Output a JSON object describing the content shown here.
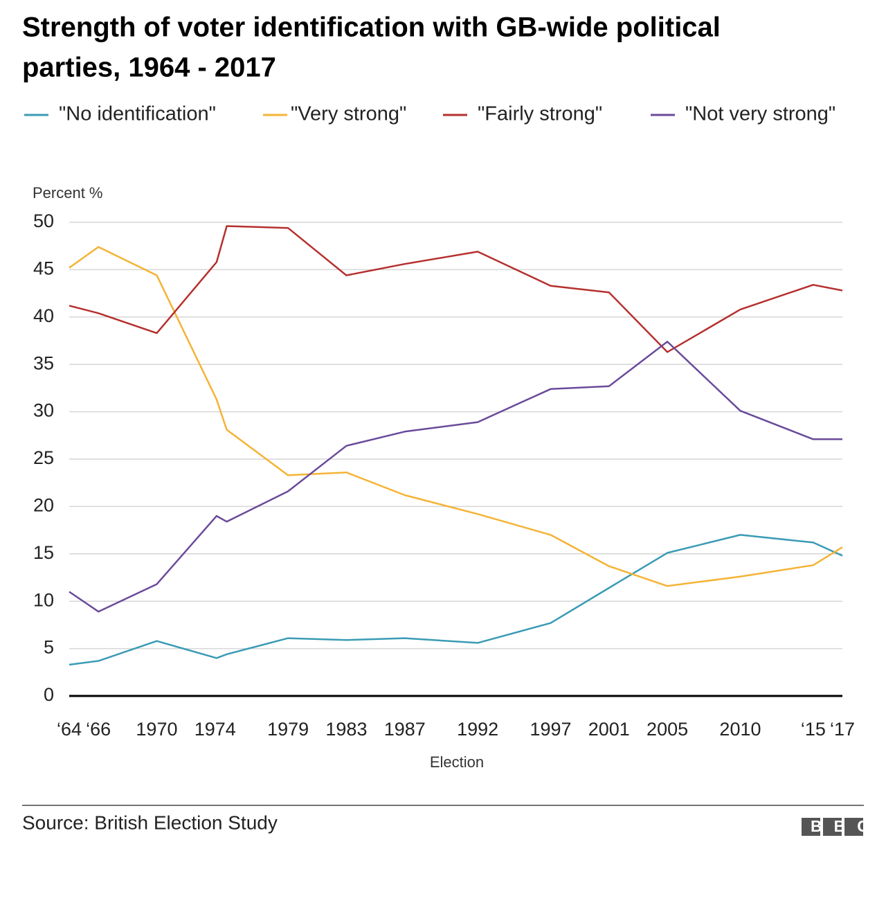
{
  "chart_data": {
    "type": "line",
    "title": [
      "Strength of voter identification with GB-wide political",
      "parties, 1964 - 2017"
    ],
    "y_label": "Percent %",
    "x_label": "Election",
    "source": "Source: British Election Study",
    "logo": "BBC",
    "x": [
      1964,
      1966,
      1970,
      1974.1,
      1974.8,
      1979,
      1983,
      1987,
      1992,
      1997,
      2001,
      2005,
      2010,
      2015,
      2017
    ],
    "series": [
      {
        "name": "\"No identification\"",
        "color": "#3a9bb5",
        "values": [
          3.3,
          3.7,
          5.8,
          4.0,
          4.4,
          6.1,
          5.9,
          6.1,
          5.6,
          7.7,
          11.4,
          15.1,
          17.0,
          16.2,
          14.8
        ]
      },
      {
        "name": "\"Very strong\"",
        "color": "#f5b335",
        "values": [
          45.2,
          47.4,
          44.4,
          31.3,
          28.1,
          23.3,
          23.6,
          21.2,
          19.2,
          17.0,
          13.7,
          11.6,
          12.6,
          13.8,
          15.7
        ]
      },
      {
        "name": "\"Fairly strong\"",
        "color": "#b5302e",
        "values": [
          41.2,
          40.4,
          38.3,
          45.8,
          49.6,
          49.4,
          44.4,
          45.6,
          46.9,
          43.3,
          42.6,
          36.3,
          40.8,
          43.4,
          42.8
        ]
      },
      {
        "name": "\"Not very strong\"",
        "color": "#6a4a9a",
        "values": [
          11.0,
          8.9,
          11.8,
          19.0,
          18.4,
          21.6,
          26.4,
          27.9,
          28.9,
          32.4,
          32.7,
          37.4,
          30.1,
          27.1,
          27.1
        ]
      }
    ],
    "xlim": [
      1964,
      2017
    ],
    "ylim": [
      0,
      50
    ],
    "yticks": [
      0,
      5,
      10,
      15,
      20,
      25,
      30,
      35,
      40,
      45,
      50
    ],
    "xticks": [
      {
        "value": 1964,
        "label": "‘64"
      },
      {
        "value": 1966,
        "label": "‘66"
      },
      1970,
      1974,
      1979,
      1983,
      1987,
      1992,
      1997,
      2001,
      2005,
      2010,
      {
        "value": 2015,
        "label": "‘15"
      },
      {
        "value": 2017,
        "label": "‘17"
      }
    ],
    "grid": true
  }
}
